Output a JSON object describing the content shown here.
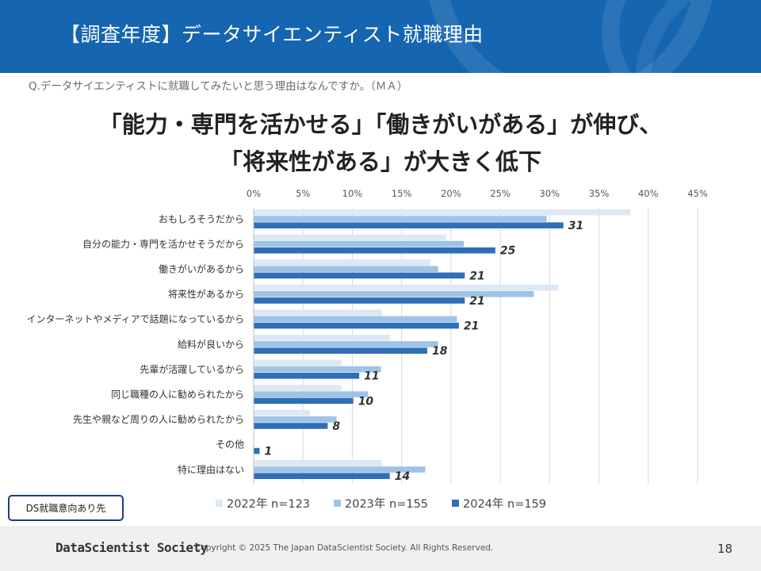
{
  "header": {
    "title": "【調査年度】データサイエンティスト就職理由"
  },
  "question": "Q.データサイエンティストに就職してみたいと思う理由はなんですか。（ＭＡ）",
  "headline": {
    "line1": "「能力・専門を活かせる」「働きがいがある」が伸び、",
    "line2": "「将来性がある」が大きく低下"
  },
  "badge": "DS就職意向あり先",
  "colors": {
    "header_bg": "#1565b0",
    "s2022": "#dde8f4",
    "s2023": "#9ec3e6",
    "s2024": "#2e6fb7",
    "gridline": "#d9d9d9"
  },
  "chart_data": {
    "type": "bar",
    "orientation": "horizontal",
    "xlim": [
      0,
      45
    ],
    "ticks": [
      {
        "value": 0,
        "label": "0%"
      },
      {
        "value": 5,
        "label": "5%"
      },
      {
        "value": 10,
        "label": "10%"
      },
      {
        "value": 15,
        "label": "15%"
      },
      {
        "value": 20,
        "label": "20%"
      },
      {
        "value": 25,
        "label": "25%"
      },
      {
        "value": 30,
        "label": "30%"
      },
      {
        "value": 35,
        "label": "35%"
      },
      {
        "value": 40,
        "label": "40%"
      },
      {
        "value": 45,
        "label": "45%"
      }
    ],
    "categories": [
      "おもしろそうだから",
      "自分の能力・専門を活かせそうだから",
      "働きがいがあるから",
      "将来性があるから",
      "インターネットやメディアで話題になっているから",
      "給料が良いから",
      "先輩が活躍しているから",
      "同じ職種の人に勧められたから",
      "先生や親など周りの人に勧められたから",
      "その他",
      "特に理由はない"
    ],
    "series": [
      {
        "name": "2022年 n=123",
        "values": [
          38.2,
          19.5,
          17.9,
          30.9,
          13.0,
          13.8,
          8.9,
          8.9,
          5.7,
          0.0,
          13.0
        ]
      },
      {
        "name": "2023年 n=155",
        "values": [
          29.7,
          21.3,
          18.7,
          28.4,
          20.6,
          18.7,
          12.9,
          11.6,
          8.4,
          0.0,
          17.4
        ]
      },
      {
        "name": "2024年 n=159",
        "values": [
          31.4,
          24.5,
          21.4,
          21.4,
          20.8,
          17.6,
          10.7,
          10.1,
          7.5,
          0.6,
          13.8
        ]
      }
    ],
    "data_labels": [
      "31",
      "25",
      "21",
      "21",
      "21",
      "18",
      "11",
      "10",
      "8",
      "1",
      "14"
    ]
  },
  "footer": {
    "logo": "DataScientist Society",
    "copyright": "Copyright © 2025  The Japan DataScientist Society. All Rights Reserved.",
    "page": "18"
  }
}
